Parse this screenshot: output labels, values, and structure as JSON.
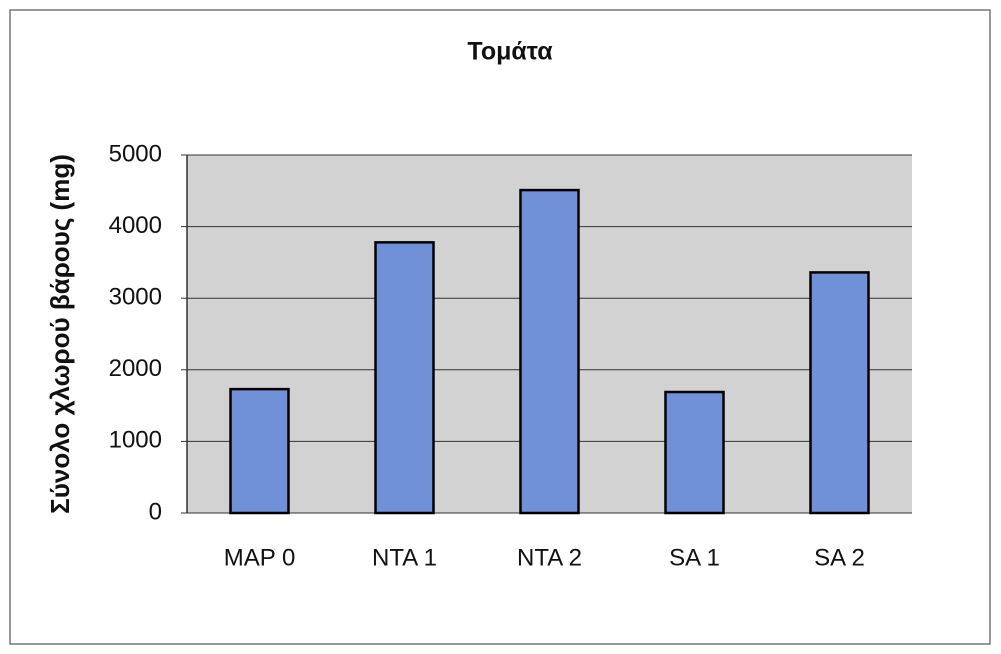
{
  "chart_data": {
    "type": "bar",
    "title": "Τομάτα",
    "y_label": "Σύνολο χλωρού βάρους (mg)",
    "categories": [
      "MAP 0",
      "NTA 1",
      "NTA 2",
      "SA 1",
      "SA 2"
    ],
    "values": [
      1730,
      3780,
      4510,
      1690,
      3360
    ],
    "color": "#7090d8",
    "ylim": [
      0,
      5000
    ],
    "yticks": [
      0,
      1000,
      2000,
      3000,
      4000,
      5000
    ],
    "grid": true
  }
}
